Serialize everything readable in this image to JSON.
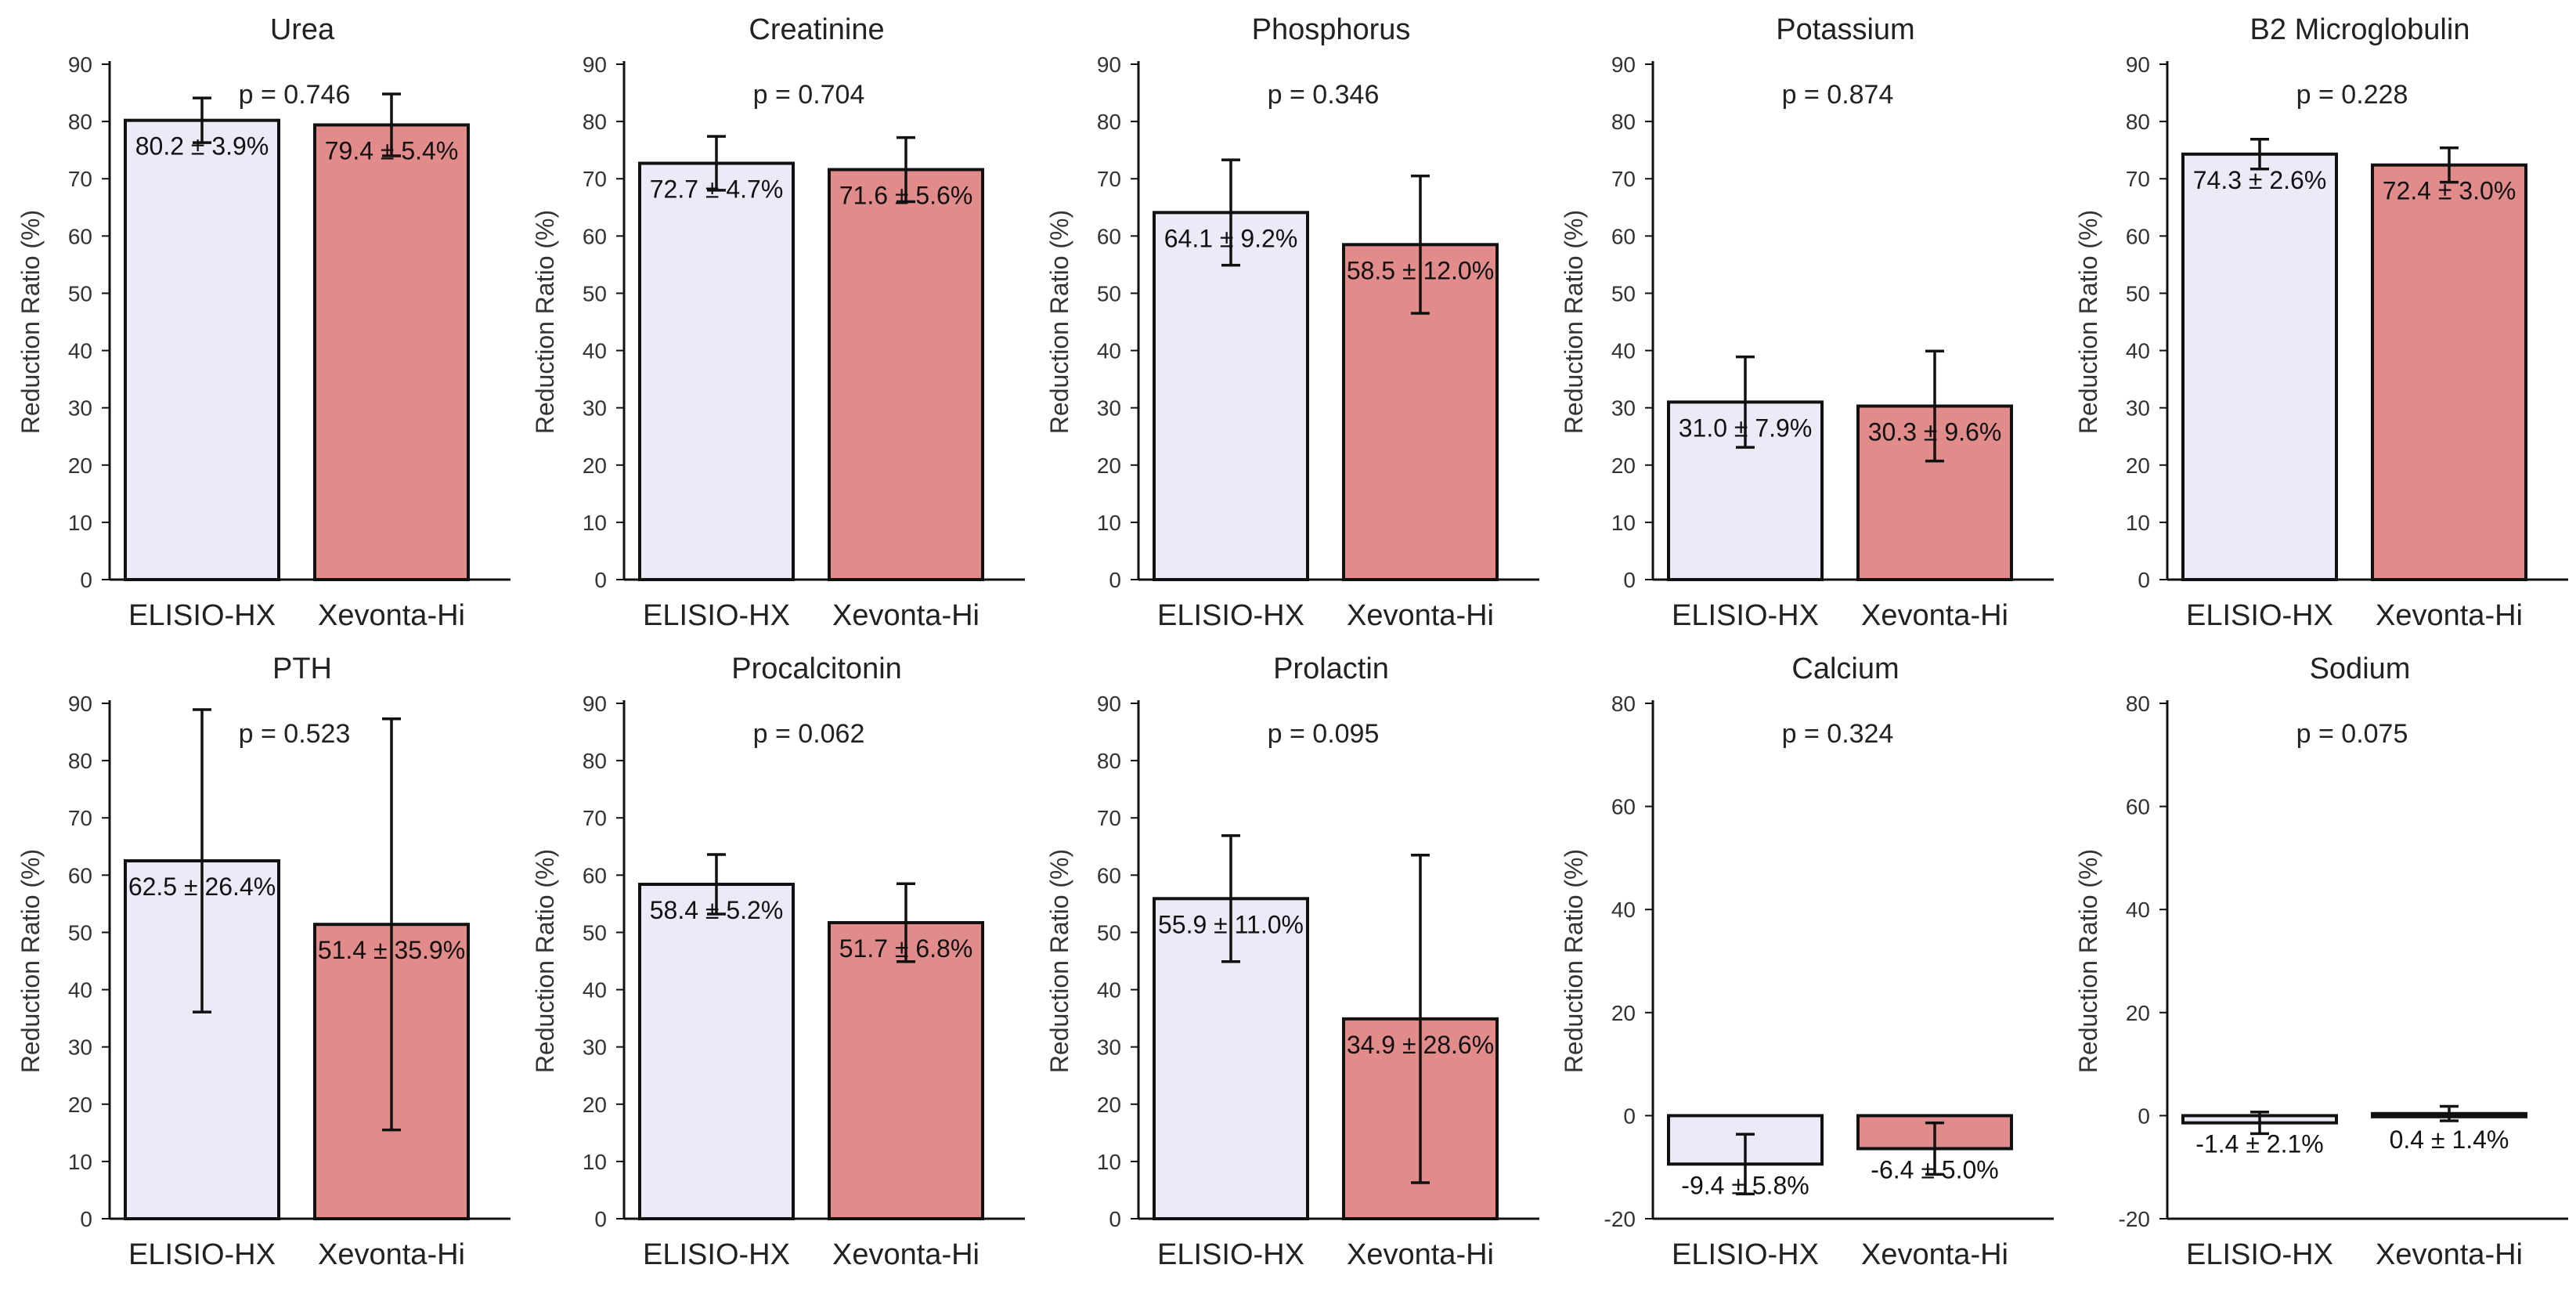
{
  "colors": {
    "series_a": "#ebebf8",
    "series_b": "#e28b8b",
    "axis": "#111111"
  },
  "ylabel": "Reduction Ratio (%)",
  "chart_data": [
    {
      "type": "bar",
      "title": "Urea",
      "categories": [
        "ELISIO-HX",
        "Xevonta-Hi"
      ],
      "values": [
        80.2,
        79.4
      ],
      "errors": [
        3.9,
        5.4
      ],
      "labels": [
        "80.2 ± 3.9%",
        "79.4 ± 5.4%"
      ],
      "pvalue": "p = 0.746",
      "ylim": [
        0,
        90
      ],
      "yticks": [
        0,
        10,
        20,
        30,
        40,
        50,
        60,
        70,
        80,
        90
      ],
      "ylabel": "Reduction Ratio (%)"
    },
    {
      "type": "bar",
      "title": "Creatinine",
      "categories": [
        "ELISIO-HX",
        "Xevonta-Hi"
      ],
      "values": [
        72.7,
        71.6
      ],
      "errors": [
        4.7,
        5.6
      ],
      "labels": [
        "72.7 ± 4.7%",
        "71.6 ± 5.6%"
      ],
      "pvalue": "p = 0.704",
      "ylim": [
        0,
        90
      ],
      "yticks": [
        0,
        10,
        20,
        30,
        40,
        50,
        60,
        70,
        80,
        90
      ],
      "ylabel": "Reduction Ratio (%)"
    },
    {
      "type": "bar",
      "title": "Phosphorus",
      "categories": [
        "ELISIO-HX",
        "Xevonta-Hi"
      ],
      "values": [
        64.1,
        58.5
      ],
      "errors": [
        9.2,
        12.0
      ],
      "labels": [
        "64.1 ± 9.2%",
        "58.5 ± 12.0%"
      ],
      "pvalue": "p = 0.346",
      "ylim": [
        0,
        90
      ],
      "yticks": [
        0,
        10,
        20,
        30,
        40,
        50,
        60,
        70,
        80,
        90
      ],
      "ylabel": "Reduction Ratio (%)"
    },
    {
      "type": "bar",
      "title": "Potassium",
      "categories": [
        "ELISIO-HX",
        "Xevonta-Hi"
      ],
      "values": [
        31.0,
        30.3
      ],
      "errors": [
        7.9,
        9.6
      ],
      "labels": [
        "31.0 ± 7.9%",
        "30.3 ± 9.6%"
      ],
      "pvalue": "p = 0.874",
      "ylim": [
        0,
        90
      ],
      "yticks": [
        0,
        10,
        20,
        30,
        40,
        50,
        60,
        70,
        80,
        90
      ],
      "ylabel": "Reduction Ratio (%)"
    },
    {
      "type": "bar",
      "title": "B2 Microglobulin",
      "categories": [
        "ELISIO-HX",
        "Xevonta-Hi"
      ],
      "values": [
        74.3,
        72.4
      ],
      "errors": [
        2.6,
        3.0
      ],
      "labels": [
        "74.3 ± 2.6%",
        "72.4 ± 3.0%"
      ],
      "pvalue": "p = 0.228",
      "ylim": [
        0,
        90
      ],
      "yticks": [
        0,
        10,
        20,
        30,
        40,
        50,
        60,
        70,
        80,
        90
      ],
      "ylabel": "Reduction Ratio (%)"
    },
    {
      "type": "bar",
      "title": "PTH",
      "categories": [
        "ELISIO-HX",
        "Xevonta-Hi"
      ],
      "values": [
        62.5,
        51.4
      ],
      "errors": [
        26.4,
        35.9
      ],
      "labels": [
        "62.5 ± 26.4%",
        "51.4 ± 35.9%"
      ],
      "pvalue": "p = 0.523",
      "ylim": [
        0,
        90
      ],
      "yticks": [
        0,
        10,
        20,
        30,
        40,
        50,
        60,
        70,
        80,
        90
      ],
      "ylabel": "Reduction Ratio (%)"
    },
    {
      "type": "bar",
      "title": "Procalcitonin",
      "categories": [
        "ELISIO-HX",
        "Xevonta-Hi"
      ],
      "values": [
        58.4,
        51.7
      ],
      "errors": [
        5.2,
        6.8
      ],
      "labels": [
        "58.4 ± 5.2%",
        "51.7 ± 6.8%"
      ],
      "pvalue": "p = 0.062",
      "ylim": [
        0,
        90
      ],
      "yticks": [
        0,
        10,
        20,
        30,
        40,
        50,
        60,
        70,
        80,
        90
      ],
      "ylabel": "Reduction Ratio (%)"
    },
    {
      "type": "bar",
      "title": "Prolactin",
      "categories": [
        "ELISIO-HX",
        "Xevonta-Hi"
      ],
      "values": [
        55.9,
        34.9
      ],
      "errors": [
        11.0,
        28.6
      ],
      "labels": [
        "55.9 ± 11.0%",
        "34.9 ± 28.6%"
      ],
      "pvalue": "p = 0.095",
      "ylim": [
        0,
        90
      ],
      "yticks": [
        0,
        10,
        20,
        30,
        40,
        50,
        60,
        70,
        80,
        90
      ],
      "ylabel": "Reduction Ratio (%)"
    },
    {
      "type": "bar",
      "title": "Calcium",
      "categories": [
        "ELISIO-HX",
        "Xevonta-Hi"
      ],
      "values": [
        -9.4,
        -6.4
      ],
      "errors": [
        5.8,
        5.0
      ],
      "labels": [
        "-9.4 ± 5.8%",
        "-6.4 ± 5.0%"
      ],
      "pvalue": "p = 0.324",
      "ylim": [
        -20,
        80
      ],
      "yticks": [
        -20,
        0,
        20,
        40,
        60,
        80
      ],
      "ylabel": "Reduction Ratio (%)"
    },
    {
      "type": "bar",
      "title": "Sodium",
      "categories": [
        "ELISIO-HX",
        "Xevonta-Hi"
      ],
      "values": [
        -1.4,
        0.4
      ],
      "errors": [
        2.1,
        1.4
      ],
      "labels": [
        "-1.4 ± 2.1%",
        "0.4 ± 1.4%"
      ],
      "pvalue": "p = 0.075",
      "ylim": [
        -20,
        80
      ],
      "yticks": [
        -20,
        0,
        20,
        40,
        60,
        80
      ],
      "ylabel": "Reduction Ratio (%)"
    }
  ]
}
